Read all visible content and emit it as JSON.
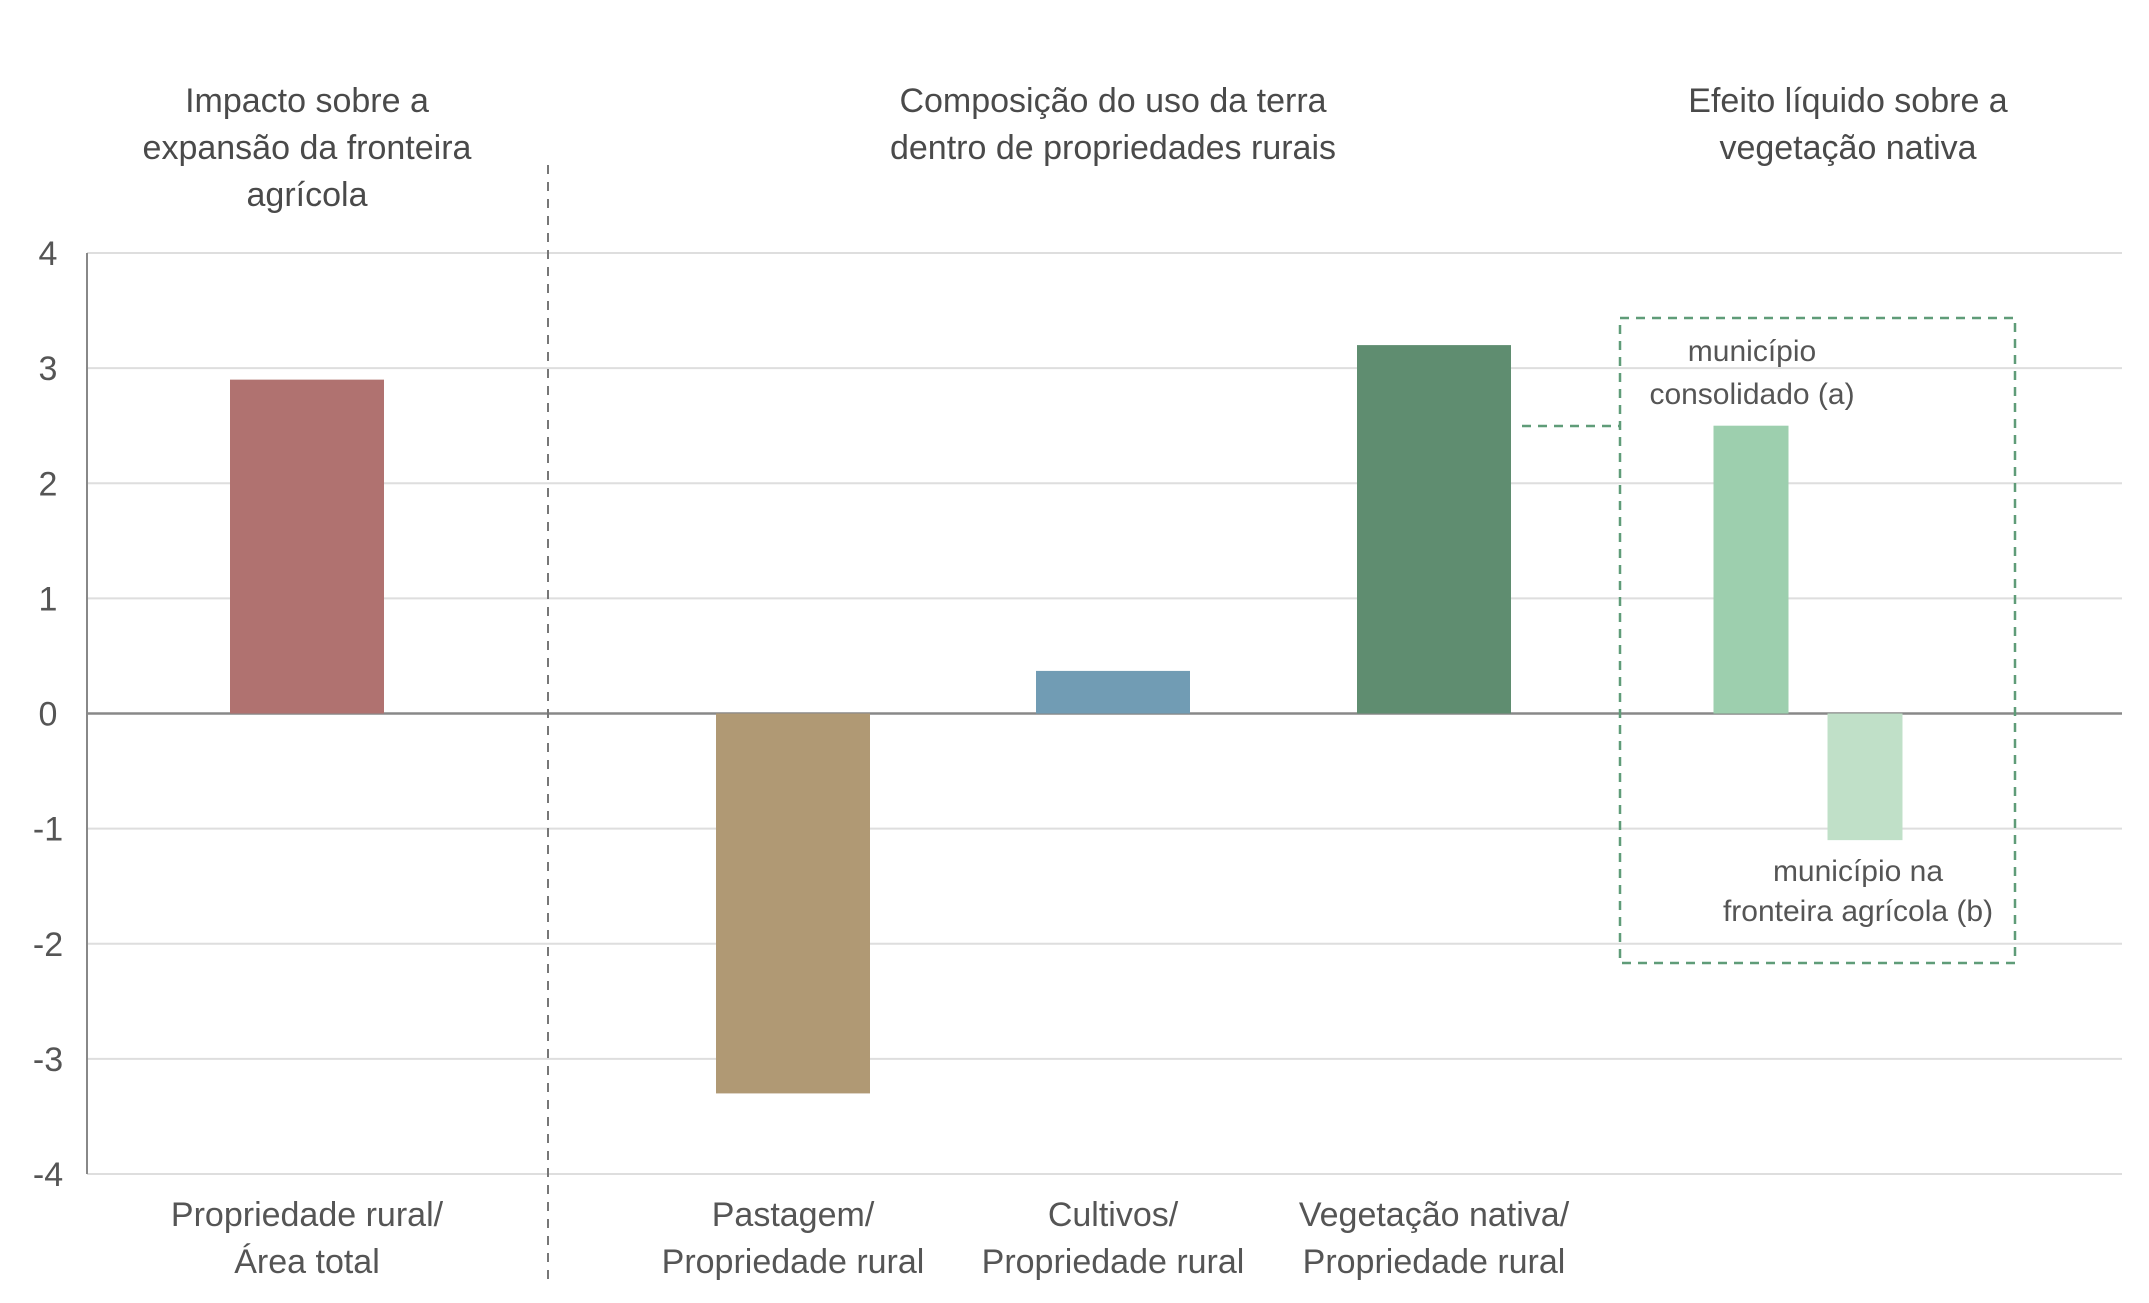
{
  "chart_data": {
    "type": "bar",
    "ylim": [
      -4,
      4
    ],
    "yticks": [
      4,
      3,
      2,
      1,
      0,
      -1,
      -2,
      -3,
      -4
    ],
    "grid": true,
    "sections": [
      {
        "title_lines": [
          "Impacto sobre a",
          "expansão da fronteira",
          "agrícola"
        ]
      },
      {
        "title_lines": [
          "Composição do uso da terra",
          "dentro de propriedades rurais"
        ]
      },
      {
        "title_lines": [
          "Efeito líquido sobre a",
          "vegetação nativa"
        ]
      }
    ],
    "bars": [
      {
        "category_lines": [
          "Propriedade rural/",
          "Área total"
        ],
        "value": 2.9,
        "color": "#b07270"
      },
      {
        "category_lines": [
          "Pastagem/",
          "Propriedade rural"
        ],
        "value": -3.3,
        "color": "#b09974"
      },
      {
        "category_lines": [
          "Cultivos/",
          "Propriedade rural"
        ],
        "value": 0.37,
        "color": "#719cb4"
      },
      {
        "category_lines": [
          "Vegetação nativa/",
          "Propriedade rural"
        ],
        "value": 3.2,
        "color": "#5f8d70"
      }
    ],
    "net_effect": [
      {
        "label_lines": [
          "município",
          "consolidado (a)"
        ],
        "value": 2.5,
        "color": "#9dcfae"
      },
      {
        "label_lines": [
          "município na",
          "fronteira agrícola (b)"
        ],
        "value": -1.1,
        "color": "#c0e0c8"
      }
    ],
    "colors": {
      "grid": "#dedede",
      "axis": "#888888",
      "divider": "#777777",
      "box": "#5f9c78"
    }
  }
}
